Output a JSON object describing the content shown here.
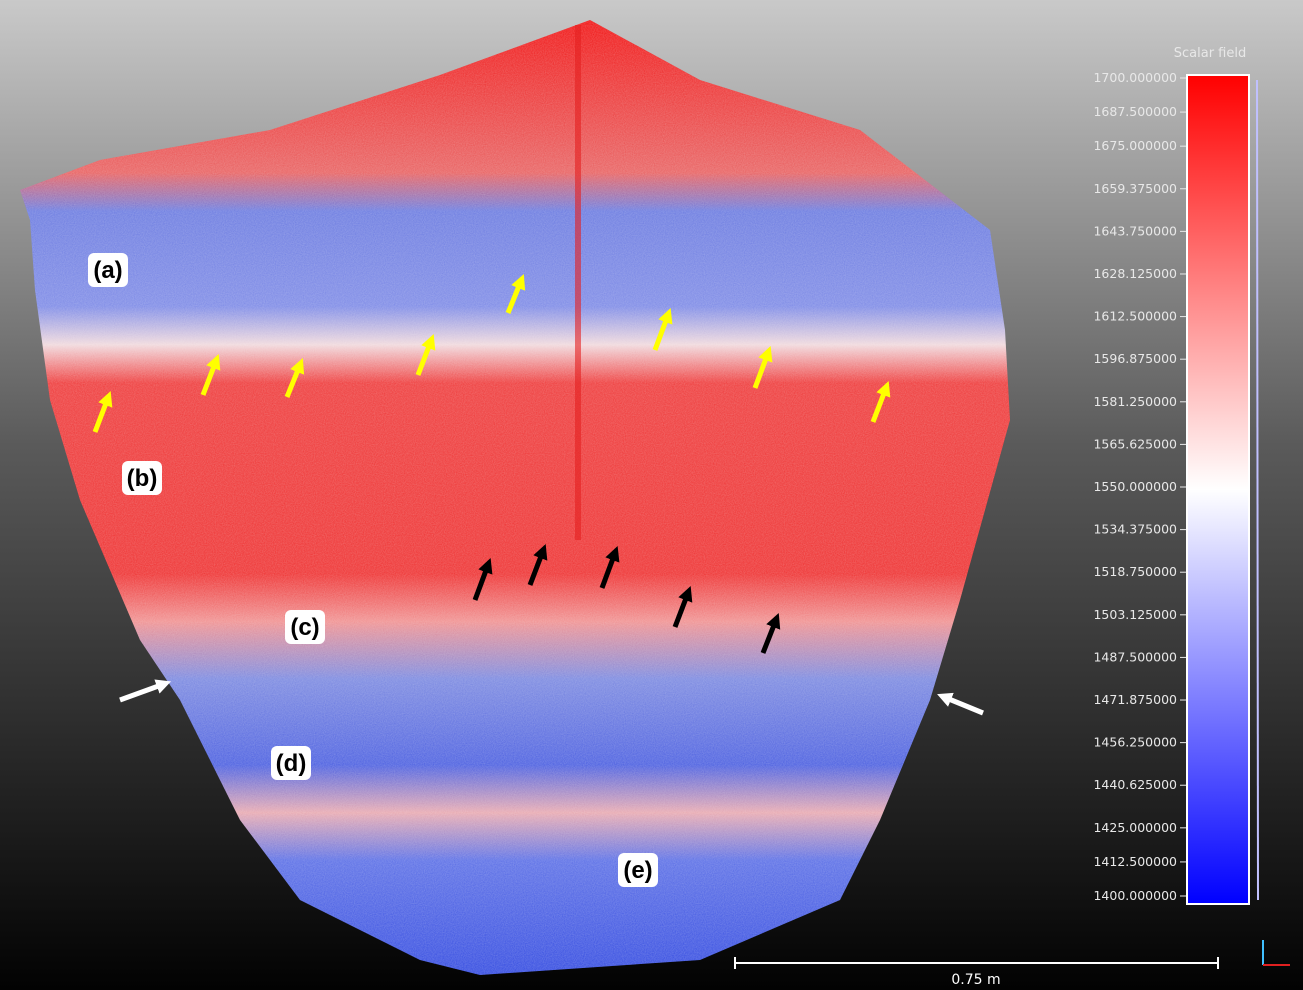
{
  "panel_labels": [
    "(a)",
    "(b)",
    "(c)",
    "(d)",
    "(e)"
  ],
  "colorbar": {
    "title": "Scalar field",
    "lim": [
      1400,
      1700
    ],
    "ticks": [
      {
        "value": 1700,
        "label": "1700.000000"
      },
      {
        "value": 1687.5,
        "label": "1687.500000"
      },
      {
        "value": 1675,
        "label": "1675.000000"
      },
      {
        "value": 1659.375,
        "label": "1659.375000"
      },
      {
        "value": 1643.75,
        "label": "1643.750000"
      },
      {
        "value": 1628.125,
        "label": "1628.125000"
      },
      {
        "value": 1612.5,
        "label": "1612.500000"
      },
      {
        "value": 1596.875,
        "label": "1596.875000"
      },
      {
        "value": 1581.25,
        "label": "1581.250000"
      },
      {
        "value": 1565.625,
        "label": "1565.625000"
      },
      {
        "value": 1550,
        "label": "1550.000000"
      },
      {
        "value": 1534.375,
        "label": "1534.375000"
      },
      {
        "value": 1518.75,
        "label": "1518.750000"
      },
      {
        "value": 1503.125,
        "label": "1503.125000"
      },
      {
        "value": 1487.5,
        "label": "1487.500000"
      },
      {
        "value": 1471.875,
        "label": "1471.875000"
      },
      {
        "value": 1456.25,
        "label": "1456.250000"
      },
      {
        "value": 1440.625,
        "label": "1440.625000"
      },
      {
        "value": 1425,
        "label": "1425.000000"
      },
      {
        "value": 1412.5,
        "label": "1412.500000"
      },
      {
        "value": 1400,
        "label": "1400.000000"
      }
    ]
  },
  "scale_bar": {
    "label": "0.75 m"
  }
}
